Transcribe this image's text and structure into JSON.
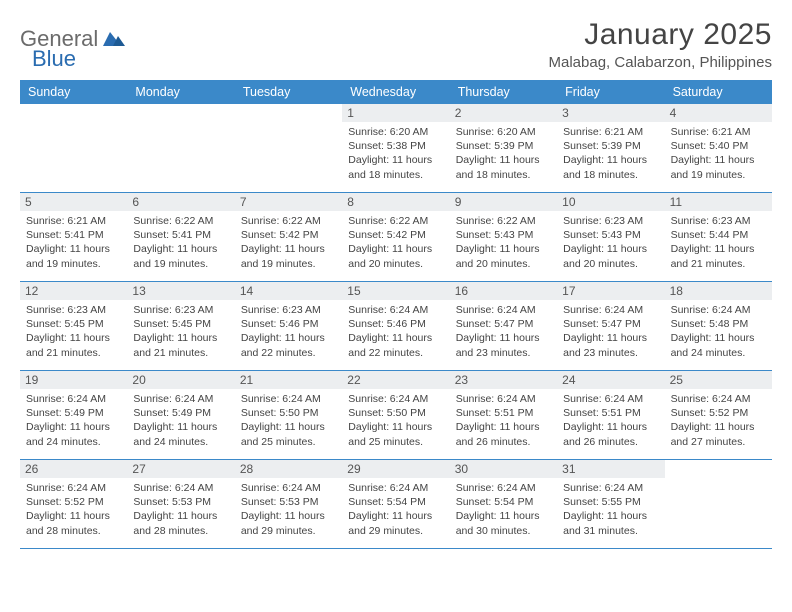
{
  "logo": {
    "general": "General",
    "blue": "Blue"
  },
  "title": "January 2025",
  "location": "Malabag, Calabarzon, Philippines",
  "colors": {
    "header_bg": "#3b89c9",
    "daynum_bg": "#eceef0",
    "border": "#3b89c9",
    "logo_gray": "#6b6b6b",
    "logo_blue": "#2a6cb0"
  },
  "dayNames": [
    "Sunday",
    "Monday",
    "Tuesday",
    "Wednesday",
    "Thursday",
    "Friday",
    "Saturday"
  ],
  "weeks": [
    [
      {
        "n": "",
        "sr": "",
        "ss": "",
        "dl": ""
      },
      {
        "n": "",
        "sr": "",
        "ss": "",
        "dl": ""
      },
      {
        "n": "",
        "sr": "",
        "ss": "",
        "dl": ""
      },
      {
        "n": "1",
        "sr": "6:20 AM",
        "ss": "5:38 PM",
        "dl": "11 hours and 18 minutes."
      },
      {
        "n": "2",
        "sr": "6:20 AM",
        "ss": "5:39 PM",
        "dl": "11 hours and 18 minutes."
      },
      {
        "n": "3",
        "sr": "6:21 AM",
        "ss": "5:39 PM",
        "dl": "11 hours and 18 minutes."
      },
      {
        "n": "4",
        "sr": "6:21 AM",
        "ss": "5:40 PM",
        "dl": "11 hours and 19 minutes."
      }
    ],
    [
      {
        "n": "5",
        "sr": "6:21 AM",
        "ss": "5:41 PM",
        "dl": "11 hours and 19 minutes."
      },
      {
        "n": "6",
        "sr": "6:22 AM",
        "ss": "5:41 PM",
        "dl": "11 hours and 19 minutes."
      },
      {
        "n": "7",
        "sr": "6:22 AM",
        "ss": "5:42 PM",
        "dl": "11 hours and 19 minutes."
      },
      {
        "n": "8",
        "sr": "6:22 AM",
        "ss": "5:42 PM",
        "dl": "11 hours and 20 minutes."
      },
      {
        "n": "9",
        "sr": "6:22 AM",
        "ss": "5:43 PM",
        "dl": "11 hours and 20 minutes."
      },
      {
        "n": "10",
        "sr": "6:23 AM",
        "ss": "5:43 PM",
        "dl": "11 hours and 20 minutes."
      },
      {
        "n": "11",
        "sr": "6:23 AM",
        "ss": "5:44 PM",
        "dl": "11 hours and 21 minutes."
      }
    ],
    [
      {
        "n": "12",
        "sr": "6:23 AM",
        "ss": "5:45 PM",
        "dl": "11 hours and 21 minutes."
      },
      {
        "n": "13",
        "sr": "6:23 AM",
        "ss": "5:45 PM",
        "dl": "11 hours and 21 minutes."
      },
      {
        "n": "14",
        "sr": "6:23 AM",
        "ss": "5:46 PM",
        "dl": "11 hours and 22 minutes."
      },
      {
        "n": "15",
        "sr": "6:24 AM",
        "ss": "5:46 PM",
        "dl": "11 hours and 22 minutes."
      },
      {
        "n": "16",
        "sr": "6:24 AM",
        "ss": "5:47 PM",
        "dl": "11 hours and 23 minutes."
      },
      {
        "n": "17",
        "sr": "6:24 AM",
        "ss": "5:47 PM",
        "dl": "11 hours and 23 minutes."
      },
      {
        "n": "18",
        "sr": "6:24 AM",
        "ss": "5:48 PM",
        "dl": "11 hours and 24 minutes."
      }
    ],
    [
      {
        "n": "19",
        "sr": "6:24 AM",
        "ss": "5:49 PM",
        "dl": "11 hours and 24 minutes."
      },
      {
        "n": "20",
        "sr": "6:24 AM",
        "ss": "5:49 PM",
        "dl": "11 hours and 24 minutes."
      },
      {
        "n": "21",
        "sr": "6:24 AM",
        "ss": "5:50 PM",
        "dl": "11 hours and 25 minutes."
      },
      {
        "n": "22",
        "sr": "6:24 AM",
        "ss": "5:50 PM",
        "dl": "11 hours and 25 minutes."
      },
      {
        "n": "23",
        "sr": "6:24 AM",
        "ss": "5:51 PM",
        "dl": "11 hours and 26 minutes."
      },
      {
        "n": "24",
        "sr": "6:24 AM",
        "ss": "5:51 PM",
        "dl": "11 hours and 26 minutes."
      },
      {
        "n": "25",
        "sr": "6:24 AM",
        "ss": "5:52 PM",
        "dl": "11 hours and 27 minutes."
      }
    ],
    [
      {
        "n": "26",
        "sr": "6:24 AM",
        "ss": "5:52 PM",
        "dl": "11 hours and 28 minutes."
      },
      {
        "n": "27",
        "sr": "6:24 AM",
        "ss": "5:53 PM",
        "dl": "11 hours and 28 minutes."
      },
      {
        "n": "28",
        "sr": "6:24 AM",
        "ss": "5:53 PM",
        "dl": "11 hours and 29 minutes."
      },
      {
        "n": "29",
        "sr": "6:24 AM",
        "ss": "5:54 PM",
        "dl": "11 hours and 29 minutes."
      },
      {
        "n": "30",
        "sr": "6:24 AM",
        "ss": "5:54 PM",
        "dl": "11 hours and 30 minutes."
      },
      {
        "n": "31",
        "sr": "6:24 AM",
        "ss": "5:55 PM",
        "dl": "11 hours and 31 minutes."
      },
      {
        "n": "",
        "sr": "",
        "ss": "",
        "dl": ""
      }
    ]
  ],
  "labels": {
    "sunrise": "Sunrise:",
    "sunset": "Sunset:",
    "daylight": "Daylight:"
  }
}
